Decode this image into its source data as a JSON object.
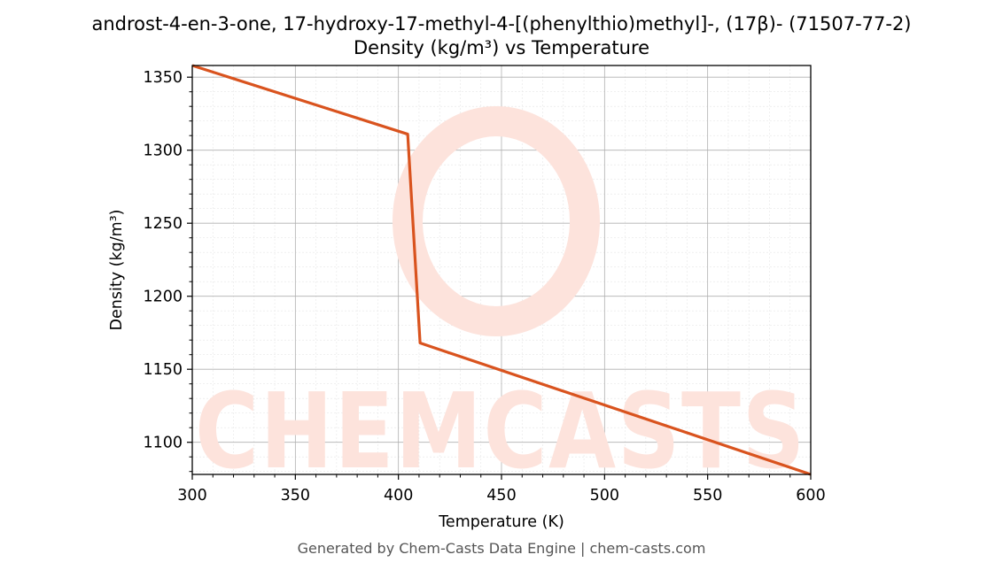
{
  "chart_data": {
    "type": "line",
    "title": "androst-4-en-3-one, 17-hydroxy-17-methyl-4-[(phenylthio)methyl]-, (17β)- (71507-77-2)",
    "subtitle": "Density (kg/m³) vs Temperature",
    "xlabel": "Temperature (K)",
    "ylabel": "Density (kg/m³)",
    "xlim": [
      300,
      600
    ],
    "ylim": [
      1078,
      1358
    ],
    "xticks": [
      300,
      350,
      400,
      450,
      500,
      550,
      600
    ],
    "yticks": [
      1100,
      1150,
      1200,
      1250,
      1300,
      1350
    ],
    "grid": true,
    "series": [
      {
        "x": [
          300,
          404.5,
          410.5,
          600
        ],
        "y": [
          1358,
          1311,
          1168,
          1078
        ]
      }
    ]
  },
  "colors": {
    "line": "#d9531e",
    "watermark": "#fde3dc"
  },
  "watermark": {
    "text": "CHEMCASTS"
  },
  "footer": {
    "text": "Generated by Chem-Casts Data Engine | chem-casts.com"
  }
}
